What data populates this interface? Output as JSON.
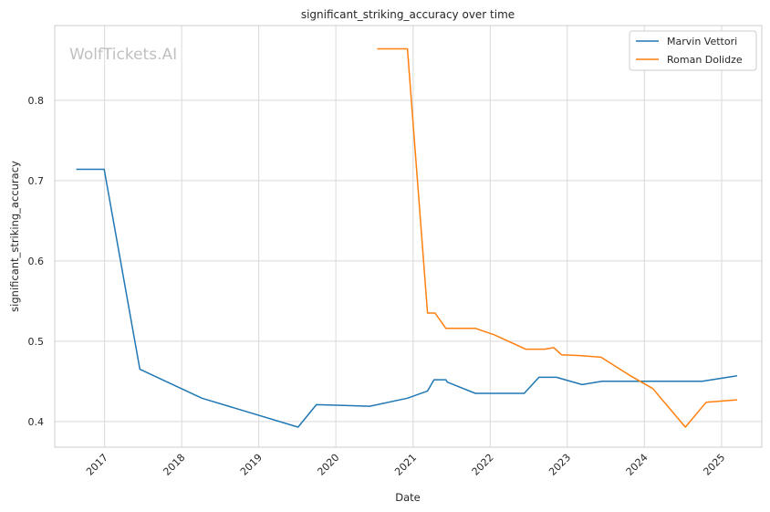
{
  "chart_data": {
    "type": "line",
    "title": "significant_striking_accuracy over time",
    "xlabel": "Date",
    "ylabel": "significant_striking_accuracy",
    "watermark": "WolfTickets.AI",
    "xlim": [
      "2016-05-10",
      "2025-07-10"
    ],
    "ylim": [
      0.368,
      0.893
    ],
    "x_ticks": [
      "2017",
      "2018",
      "2019",
      "2020",
      "2021",
      "2022",
      "2023",
      "2024",
      "2025"
    ],
    "y_ticks": [
      "0.4",
      "0.5",
      "0.6",
      "0.7",
      "0.8"
    ],
    "grid": true,
    "legend_position": "top-right",
    "series": [
      {
        "name": "Marvin Vettori",
        "color": "#1f77b4",
        "points": [
          [
            "2016-08-20",
            0.714
          ],
          [
            "2016-12-30",
            0.714
          ],
          [
            "2017-06-17",
            0.465
          ],
          [
            "2018-04-07",
            0.429
          ],
          [
            "2019-07-06",
            0.393
          ],
          [
            "2019-10-01",
            0.421
          ],
          [
            "2020-06-10",
            0.419
          ],
          [
            "2020-12-05",
            0.429
          ],
          [
            "2021-03-10",
            0.438
          ],
          [
            "2021-04-10",
            0.452
          ],
          [
            "2021-06-05",
            0.452
          ],
          [
            "2021-06-12",
            0.449
          ],
          [
            "2021-10-23",
            0.435
          ],
          [
            "2022-06-11",
            0.435
          ],
          [
            "2022-08-20",
            0.455
          ],
          [
            "2022-11-10",
            0.455
          ],
          [
            "2023-03-12",
            0.446
          ],
          [
            "2023-06-15",
            0.45
          ],
          [
            "2024-01-15",
            0.45
          ],
          [
            "2024-10-01",
            0.45
          ],
          [
            "2025-03-15",
            0.457
          ]
        ]
      },
      {
        "name": "Roman Dolidze",
        "color": "#ff7f0e",
        "points": [
          [
            "2020-07-15",
            0.864
          ],
          [
            "2020-12-05",
            0.864
          ],
          [
            "2021-03-10",
            0.535
          ],
          [
            "2021-04-15",
            0.535
          ],
          [
            "2021-06-05",
            0.516
          ],
          [
            "2021-10-23",
            0.516
          ],
          [
            "2022-01-20",
            0.508
          ],
          [
            "2022-06-18",
            0.49
          ],
          [
            "2022-09-15",
            0.49
          ],
          [
            "2022-10-29",
            0.492
          ],
          [
            "2022-12-05",
            0.483
          ],
          [
            "2023-03-10",
            0.482
          ],
          [
            "2023-06-10",
            0.48
          ],
          [
            "2023-10-20",
            0.458
          ],
          [
            "2024-02-10",
            0.441
          ],
          [
            "2024-07-13",
            0.393
          ],
          [
            "2024-10-20",
            0.424
          ],
          [
            "2025-03-15",
            0.427
          ]
        ]
      }
    ]
  }
}
